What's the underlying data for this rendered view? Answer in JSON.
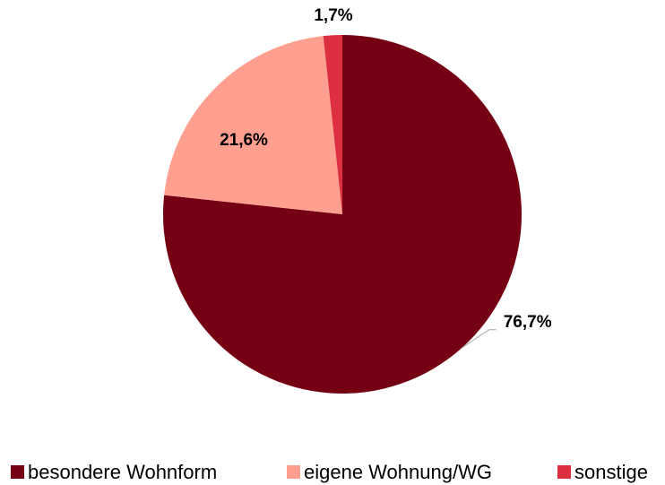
{
  "chart_data": {
    "type": "pie",
    "categories": [
      "besondere Wohnform",
      "eigene Wohnung/WG",
      "sonstige"
    ],
    "values": [
      76.7,
      21.6,
      1.7
    ],
    "value_labels": [
      "76,7%",
      "21,6%",
      "1,7%"
    ],
    "colors": [
      "#750014",
      "#ff9f8f",
      "#dc2f3f"
    ],
    "legend": "bottom"
  }
}
